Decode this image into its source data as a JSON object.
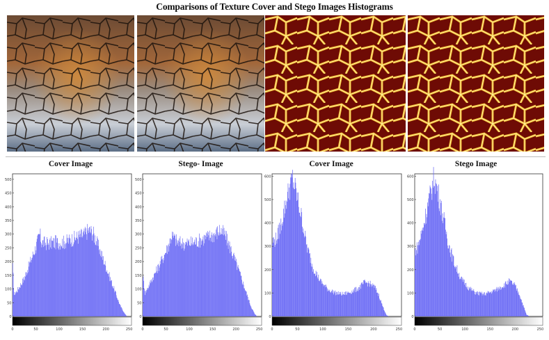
{
  "title": "Comparisons of Texture Cover and Stego Images Histograms",
  "images": [
    {
      "kind": "bark",
      "caption_hidden": true
    },
    {
      "kind": "bark",
      "caption_hidden": true
    },
    {
      "kind": "lava",
      "caption_hidden": true
    },
    {
      "kind": "lava",
      "caption_hidden": true
    }
  ],
  "colors": {
    "bars": "#6a6af5",
    "axis": "#333333",
    "background": "#ffffff"
  },
  "chart_data": [
    {
      "type": "bar",
      "title": "Cover Image",
      "xlim": [
        0,
        255
      ],
      "ylim": [
        0,
        520
      ],
      "xticks": [
        0,
        50,
        100,
        150,
        200,
        250
      ],
      "yticks": [
        0,
        50,
        100,
        150,
        200,
        250,
        300,
        350,
        400,
        450,
        500
      ],
      "profile": [
        [
          0,
          180
        ],
        [
          3,
          80
        ],
        [
          10,
          95
        ],
        [
          25,
          140
        ],
        [
          40,
          210
        ],
        [
          50,
          255
        ],
        [
          58,
          300
        ],
        [
          62,
          270
        ],
        [
          75,
          265
        ],
        [
          90,
          270
        ],
        [
          110,
          270
        ],
        [
          125,
          280
        ],
        [
          140,
          290
        ],
        [
          155,
          300
        ],
        [
          162,
          315
        ],
        [
          172,
          305
        ],
        [
          185,
          250
        ],
        [
          200,
          180
        ],
        [
          215,
          110
        ],
        [
          230,
          40
        ],
        [
          240,
          10
        ],
        [
          245,
          0
        ],
        [
          255,
          0
        ]
      ]
    },
    {
      "type": "bar",
      "title": "Stego- Image",
      "xlim": [
        0,
        255
      ],
      "ylim": [
        0,
        520
      ],
      "xticks": [
        0,
        50,
        100,
        150,
        200,
        250
      ],
      "yticks": [
        0,
        50,
        100,
        150,
        200,
        250,
        300,
        350,
        400,
        450,
        500
      ],
      "profile": [
        [
          0,
          150
        ],
        [
          5,
          85
        ],
        [
          15,
          120
        ],
        [
          30,
          170
        ],
        [
          45,
          220
        ],
        [
          55,
          260
        ],
        [
          62,
          295
        ],
        [
          75,
          270
        ],
        [
          90,
          265
        ],
        [
          110,
          270
        ],
        [
          125,
          280
        ],
        [
          140,
          290
        ],
        [
          155,
          300
        ],
        [
          165,
          315
        ],
        [
          175,
          300
        ],
        [
          190,
          240
        ],
        [
          205,
          170
        ],
        [
          220,
          95
        ],
        [
          232,
          35
        ],
        [
          240,
          8
        ],
        [
          245,
          0
        ],
        [
          255,
          0
        ]
      ]
    },
    {
      "type": "bar",
      "title": "Cover Image",
      "xlim": [
        0,
        255
      ],
      "ylim": [
        0,
        610
      ],
      "xticks": [
        0,
        50,
        100,
        150,
        200,
        250
      ],
      "yticks": [
        0,
        100,
        200,
        300,
        400,
        500,
        600
      ],
      "profile": [
        [
          0,
          320
        ],
        [
          8,
          330
        ],
        [
          18,
          400
        ],
        [
          28,
          500
        ],
        [
          35,
          560
        ],
        [
          40,
          590
        ],
        [
          48,
          520
        ],
        [
          58,
          420
        ],
        [
          68,
          300
        ],
        [
          80,
          210
        ],
        [
          95,
          150
        ],
        [
          110,
          115
        ],
        [
          125,
          100
        ],
        [
          140,
          95
        ],
        [
          155,
          105
        ],
        [
          170,
          120
        ],
        [
          182,
          145
        ],
        [
          192,
          140
        ],
        [
          202,
          125
        ],
        [
          210,
          90
        ],
        [
          218,
          40
        ],
        [
          225,
          5
        ],
        [
          230,
          0
        ],
        [
          255,
          0
        ]
      ]
    },
    {
      "type": "bar",
      "title": "Stego Image",
      "xlim": [
        0,
        255
      ],
      "ylim": [
        0,
        610
      ],
      "xticks": [
        0,
        50,
        100,
        150,
        200,
        250
      ],
      "yticks": [
        0,
        100,
        200,
        300,
        400,
        500,
        600
      ],
      "profile": [
        [
          0,
          280
        ],
        [
          6,
          300
        ],
        [
          16,
          380
        ],
        [
          26,
          480
        ],
        [
          34,
          550
        ],
        [
          38,
          595
        ],
        [
          46,
          530
        ],
        [
          56,
          430
        ],
        [
          66,
          320
        ],
        [
          78,
          230
        ],
        [
          92,
          160
        ],
        [
          108,
          120
        ],
        [
          122,
          100
        ],
        [
          138,
          95
        ],
        [
          152,
          105
        ],
        [
          166,
          118
        ],
        [
          178,
          135
        ],
        [
          188,
          150
        ],
        [
          198,
          135
        ],
        [
          208,
          95
        ],
        [
          216,
          45
        ],
        [
          222,
          8
        ],
        [
          228,
          0
        ],
        [
          255,
          0
        ]
      ]
    }
  ]
}
